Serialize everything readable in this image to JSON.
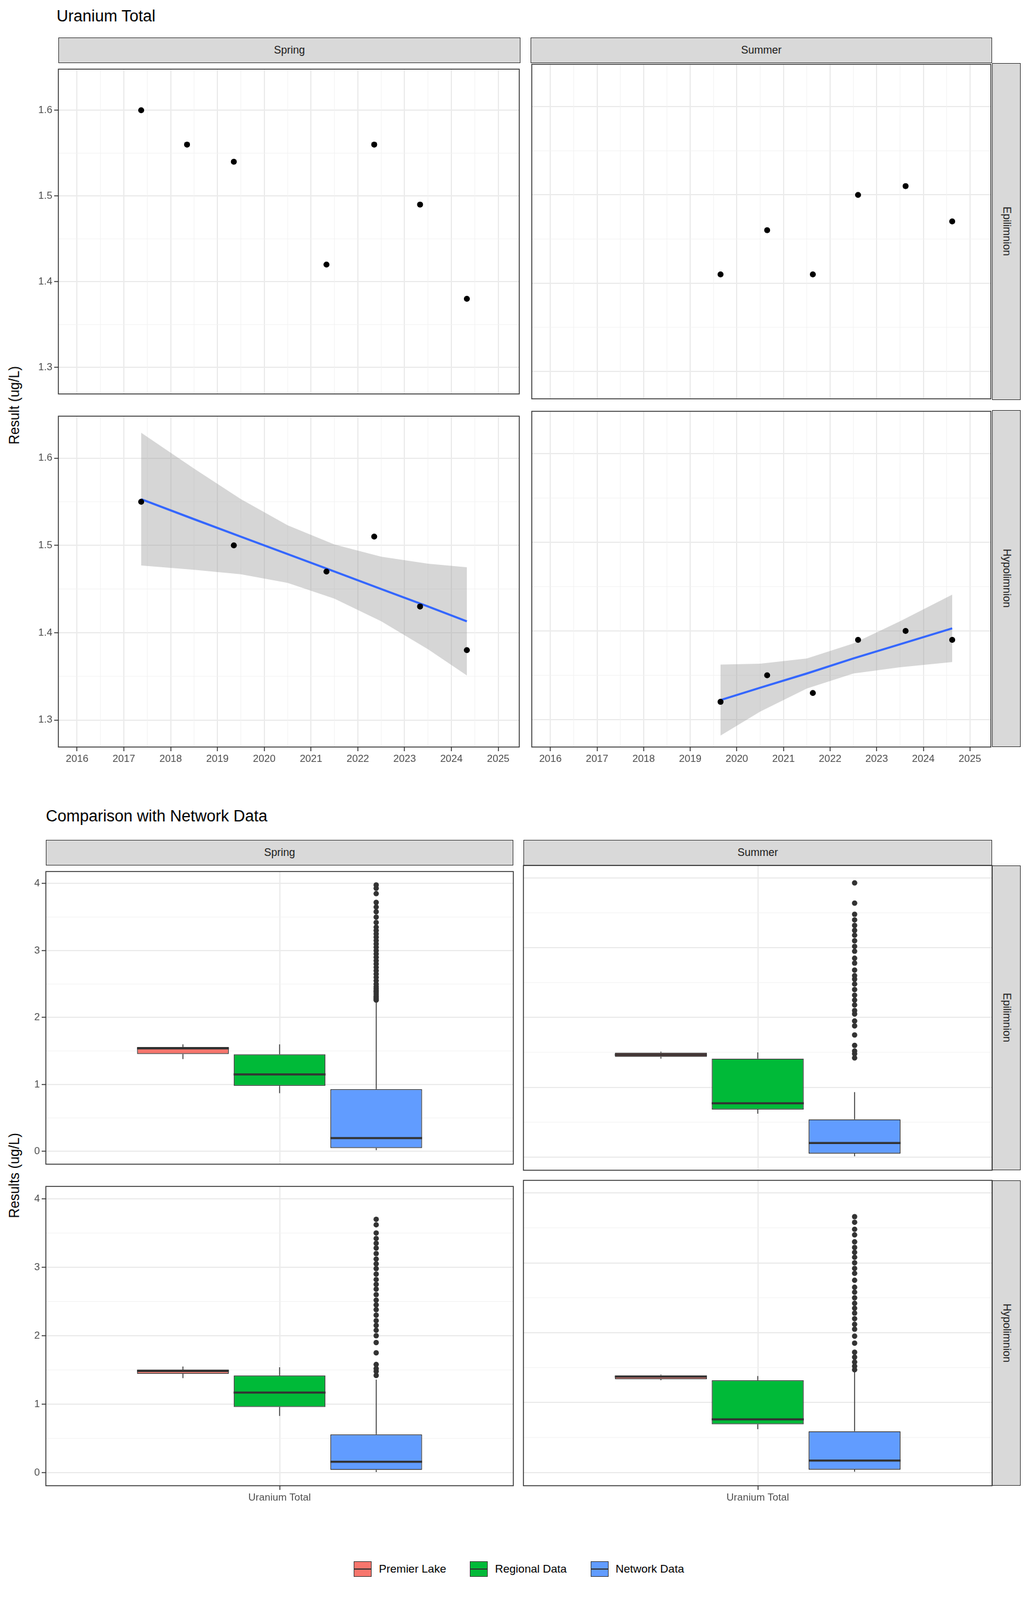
{
  "chart_data": [
    {
      "type": "scatter",
      "title": "Uranium Total",
      "ylabel": "Result (ug/L)",
      "columns": [
        "Spring",
        "Summer"
      ],
      "rows": [
        "Epilimnion",
        "Hypolimnion"
      ],
      "color": "#000000",
      "grid": true,
      "xlim": [
        2015.6,
        2025.45
      ],
      "xticks": [
        2016,
        2017,
        2018,
        2019,
        2020,
        2021,
        2022,
        2023,
        2024,
        2025
      ],
      "ylim": [
        1.269,
        1.648
      ],
      "yticks": [
        1.3,
        1.4,
        1.5,
        1.6
      ],
      "panels": [
        [
          {
            "x": [
              2017.37,
              2018.35,
              2019.35,
              2021.33,
              2022.35,
              2023.33,
              2024.33
            ],
            "values": [
              1.6,
              1.56,
              1.54,
              1.42,
              1.56,
              1.49,
              1.38
            ]
          },
          {
            "x": [
              2019.65,
              2020.65,
              2021.63,
              2022.6,
              2023.62,
              2024.62
            ],
            "values": [
              1.41,
              1.46,
              1.41,
              1.5,
              1.51,
              1.47
            ]
          }
        ],
        [
          {
            "x": [
              2017.37,
              2019.35,
              2021.33,
              2022.35,
              2023.33,
              2024.33
            ],
            "values": [
              1.55,
              1.5,
              1.47,
              1.51,
              1.43,
              1.38
            ],
            "fit": {
              "color": "#3366FF",
              "x": [
                2017.37,
                2018.5,
                2019.5,
                2020.5,
                2021.5,
                2022.5,
                2023.5,
                2024.33
              ],
              "values": [
                1.553,
                1.53,
                1.51,
                1.49,
                1.47,
                1.45,
                1.43,
                1.413
              ],
              "lower": [
                1.477,
                1.472,
                1.467,
                1.457,
                1.439,
                1.413,
                1.381,
                1.351
              ],
              "upper": [
                1.629,
                1.588,
                1.553,
                1.523,
                1.501,
                1.487,
                1.479,
                1.475
              ]
            }
          },
          {
            "x": [
              2019.65,
              2020.65,
              2021.63,
              2022.6,
              2023.62,
              2024.62
            ],
            "values": [
              1.32,
              1.35,
              1.33,
              1.39,
              1.4,
              1.39
            ],
            "fit": {
              "color": "#3366FF",
              "x": [
                2019.65,
                2020.5,
                2021.5,
                2022.5,
                2023.5,
                2024.62
              ],
              "values": [
                1.322,
                1.336,
                1.352,
                1.369,
                1.385,
                1.403
              ],
              "lower": [
                1.282,
                1.309,
                1.335,
                1.352,
                1.359,
                1.365
              ],
              "upper": [
                1.362,
                1.363,
                1.369,
                1.386,
                1.411,
                1.441
              ]
            }
          }
        ]
      ]
    },
    {
      "type": "boxplot",
      "title": "Comparison with Network Data",
      "ylabel": "Results (ug/L)",
      "columns": [
        "Spring",
        "Summer"
      ],
      "rows": [
        "Epilimnion",
        "Hypolimnion"
      ],
      "categories": [
        "Uranium Total"
      ],
      "grid": true,
      "legend": "bottom",
      "series": [
        {
          "name": "Premier Lake",
          "color": "#F8766D"
        },
        {
          "name": "Regional Data",
          "color": "#00BA38"
        },
        {
          "name": "Network Data",
          "color": "#619CFF"
        }
      ],
      "ylim": [
        -0.19,
        4.18
      ],
      "yticks": [
        0,
        1,
        2,
        3,
        4
      ],
      "panels": [
        [
          {
            "boxes": [
              {
                "whisker_low": 1.38,
                "q1": 1.455,
                "median": 1.54,
                "q3": 1.56,
                "whisker_high": 1.6,
                "outliers": []
              },
              {
                "whisker_low": 0.87,
                "q1": 0.98,
                "median": 1.15,
                "q3": 1.45,
                "whisker_high": 1.6,
                "outliers": []
              },
              {
                "whisker_low": 0.02,
                "q1": 0.05,
                "median": 0.2,
                "q3": 0.93,
                "whisker_high": 2.24,
                "outliers": [
                  2.26,
                  2.28,
                  2.3,
                  2.32,
                  2.35,
                  2.38,
                  2.4,
                  2.43,
                  2.46,
                  2.5,
                  2.55,
                  2.6,
                  2.65,
                  2.7,
                  2.75,
                  2.8,
                  2.85,
                  2.9,
                  2.95,
                  3.0,
                  3.05,
                  3.1,
                  3.15,
                  3.2,
                  3.25,
                  3.3,
                  3.35,
                  3.42,
                  3.5,
                  3.58,
                  3.65,
                  3.72,
                  3.85,
                  3.93,
                  3.98
                ]
              }
            ]
          },
          {
            "boxes": [
              {
                "whisker_low": 1.41,
                "q1": 1.435,
                "median": 1.465,
                "q3": 1.495,
                "whisker_high": 1.51,
                "outliers": []
              },
              {
                "whisker_low": 0.62,
                "q1": 0.68,
                "median": 0.77,
                "q3": 1.41,
                "whisker_high": 1.5,
                "outliers": []
              },
              {
                "whisker_low": 0.01,
                "q1": 0.05,
                "median": 0.2,
                "q3": 0.54,
                "whisker_high": 0.93,
                "outliers": [
                  1.42,
                  1.48,
                  1.52,
                  1.6,
                  1.75,
                  1.88,
                  1.95,
                  2.05,
                  2.1,
                  2.18,
                  2.25,
                  2.32,
                  2.4,
                  2.48,
                  2.55,
                  2.6,
                  2.68,
                  2.78,
                  2.85,
                  2.95,
                  3.02,
                  3.1,
                  3.18,
                  3.25,
                  3.32,
                  3.4,
                  3.48,
                  3.64,
                  3.93
                ]
              }
            ]
          }
        ],
        [
          {
            "boxes": [
              {
                "whisker_low": 1.38,
                "q1": 1.445,
                "median": 1.485,
                "q3": 1.505,
                "whisker_high": 1.55,
                "outliers": []
              },
              {
                "whisker_low": 0.83,
                "q1": 0.96,
                "median": 1.17,
                "q3": 1.42,
                "whisker_high": 1.54,
                "outliers": []
              },
              {
                "whisker_low": 0.01,
                "q1": 0.04,
                "median": 0.16,
                "q3": 0.56,
                "whisker_high": 1.36,
                "outliers": [
                  1.42,
                  1.48,
                  1.52,
                  1.58,
                  1.75,
                  1.9,
                  2.0,
                  2.08,
                  2.15,
                  2.22,
                  2.3,
                  2.38,
                  2.45,
                  2.52,
                  2.6,
                  2.68,
                  2.75,
                  2.82,
                  2.9,
                  2.98,
                  3.05,
                  3.12,
                  3.2,
                  3.28,
                  3.35,
                  3.42,
                  3.5,
                  3.62,
                  3.7
                ]
              }
            ]
          },
          {
            "boxes": [
              {
                "whisker_low": 1.32,
                "q1": 1.335,
                "median": 1.37,
                "q3": 1.39,
                "whisker_high": 1.4,
                "outliers": []
              },
              {
                "whisker_low": 0.62,
                "q1": 0.69,
                "median": 0.76,
                "q3": 1.32,
                "whisker_high": 1.38,
                "outliers": []
              },
              {
                "whisker_low": 0.01,
                "q1": 0.04,
                "median": 0.17,
                "q3": 0.59,
                "whisker_high": 1.45,
                "outliers": [
                  1.47,
                  1.52,
                  1.58,
                  1.65,
                  1.72,
                  1.85,
                  1.95,
                  2.05,
                  2.12,
                  2.2,
                  2.28,
                  2.35,
                  2.42,
                  2.5,
                  2.58,
                  2.65,
                  2.75,
                  2.85,
                  2.92,
                  3.0,
                  3.08,
                  3.15,
                  3.22,
                  3.3,
                  3.4,
                  3.48,
                  3.58,
                  3.66
                ]
              }
            ]
          }
        ]
      ]
    }
  ]
}
